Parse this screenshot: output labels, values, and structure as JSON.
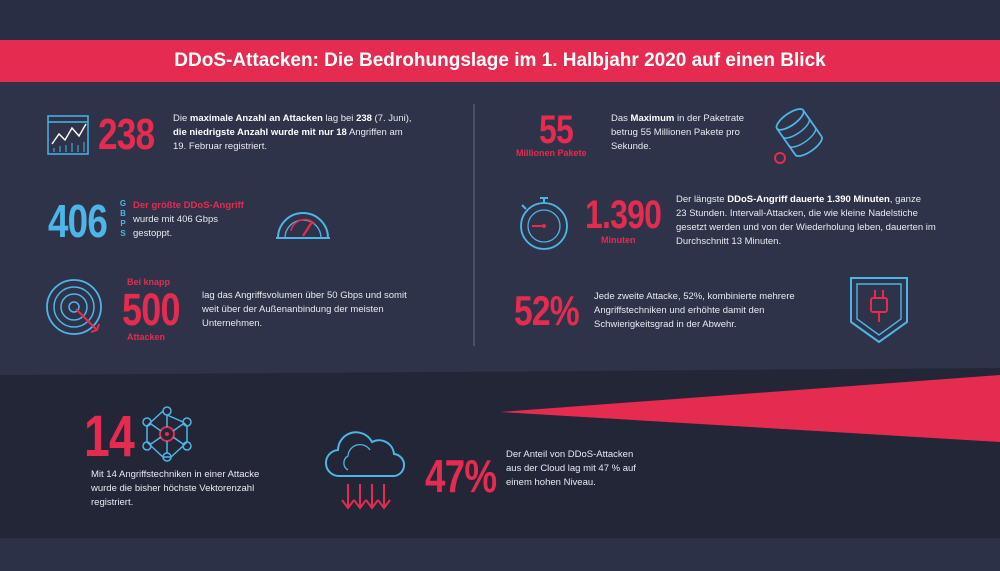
{
  "title": "DDoS-Attacken: Die Bedrohungslage im 1. Halbjahr 2020 auf einen Blick",
  "colors": {
    "accent": "#e52b50",
    "blue": "#4db5e8",
    "background": "#2c3048"
  },
  "stats": {
    "s238": {
      "number": "238",
      "t1": "Die ",
      "t1b": "maximale Anzahl an Attacken",
      "t2": " lag bei ",
      "t2b": "238",
      "t3": " (7. Juni),",
      "t4b": "die niedrigste Anzahl wurde mit nur 18",
      "t5": " Angriffen am",
      "t6": "19. Februar registriert.",
      "icon": "line-chart-icon"
    },
    "s406": {
      "number": "406",
      "unit": [
        "G",
        "B",
        "P",
        "S"
      ],
      "headline": "Der größte DDoS-Angriff",
      "l1": "wurde mit 406 Gbps",
      "l2": "gestoppt.",
      "icon": "speedometer-icon"
    },
    "s500": {
      "pre": "Bei knapp",
      "number": "500",
      "post": "Attacken",
      "l1": "lag das Angriffsvolumen über 50 Gbps und somit",
      "l2": "weit über der Außenanbindung der meisten",
      "l3": "Unternehmen.",
      "icon": "target-icon"
    },
    "s55": {
      "number": "55",
      "sub": "Millionen Pakete",
      "t1": "Das ",
      "t1b": "Maximum",
      "t2": " in der Paketrate",
      "l2": "betrug 55 Millionen Pakete pro",
      "l3": "Sekunde.",
      "icon": "database-icon"
    },
    "s1390": {
      "number": "1.390",
      "sub": "Minuten",
      "t1": "Der längste ",
      "t1b": "DDoS-Angriff dauerte 1.390 Minuten",
      "t2": ", ganze",
      "l2": "23 Stunden. Intervall-Attacken, die wie kleine Nadelstiche",
      "l3": "gesetzt werden und von der Wiederholung leben, dauerten im",
      "l4": "Durchschnitt 13 Minuten.",
      "icon": "stopwatch-icon"
    },
    "s52": {
      "number": "52%",
      "l1": "Jede zweite Attacke, 52%, kombinierte mehrere",
      "l2": "Angriffstechniken und erhöhte damit den",
      "l3": "Schwierigkeitsgrad in der Abwehr.",
      "icon": "shield-plug-icon"
    },
    "s14": {
      "number": "14",
      "l1": "Mit 14 Angriffstechniken in einer Attacke",
      "l2": "wurde die bisher höchste Vektorenzahl",
      "l3": "registriert.",
      "icon": "network-icon"
    },
    "s47": {
      "number": "47%",
      "l1": "Der Anteil von DDoS-Attacken",
      "l2": "aus der Cloud lag mit 47 % auf",
      "l3": "einem hohen Niveau.",
      "icon": "cloud-download-icon"
    }
  }
}
